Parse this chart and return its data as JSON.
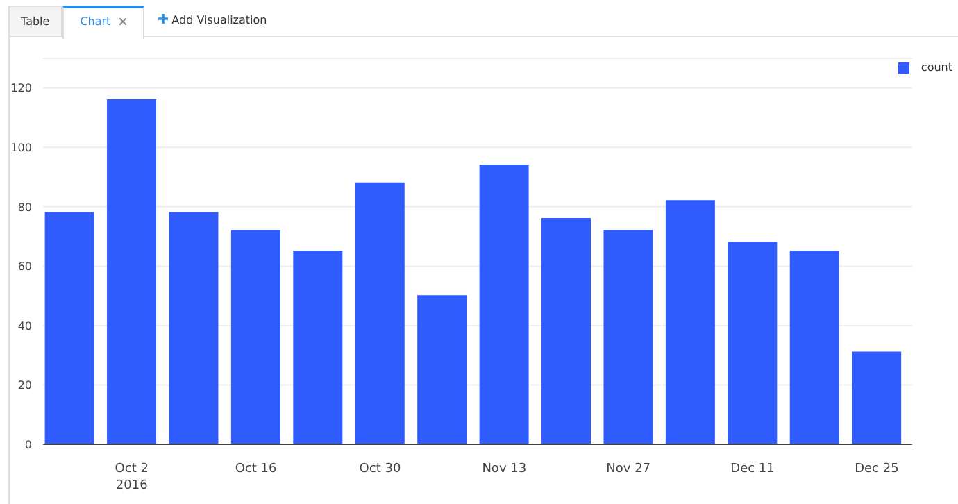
{
  "chart_data": {
    "type": "bar",
    "annotations": [
      "Table",
      "Chart",
      "Add Visualization"
    ],
    "x": [
      "2016-09-25",
      "2016-10-02",
      "2016-10-09",
      "2016-10-16",
      "2016-10-23",
      "2016-10-30",
      "2016-11-06",
      "2016-11-13",
      "2016-11-20",
      "2016-11-27",
      "2016-12-04",
      "2016-12-11",
      "2016-12-18",
      "2016-12-25"
    ],
    "series": [
      {
        "name": "count",
        "color": "#2f5bff",
        "values": [
          78,
          116,
          78,
          72,
          65,
          88,
          50,
          94,
          76,
          72,
          82,
          68,
          65,
          31
        ]
      }
    ],
    "xlim": [
      "2016-09-22",
      "2016-12-29"
    ],
    "xticks": [
      {
        "value": "2016-10-02",
        "label": "Oct 2\n2016"
      },
      {
        "value": "2016-10-16",
        "label": "Oct 16"
      },
      {
        "value": "2016-10-30",
        "label": "Oct 30"
      },
      {
        "value": "2016-11-13",
        "label": "Nov 13"
      },
      {
        "value": "2016-11-27",
        "label": "Nov 27"
      },
      {
        "value": "2016-12-11",
        "label": "Dec 11"
      },
      {
        "value": "2016-12-25",
        "label": "Dec 25"
      }
    ],
    "ylim": [
      0,
      130
    ],
    "yticks": [
      0,
      20,
      40,
      60,
      80,
      100,
      120
    ],
    "grid": "y",
    "legend": "top right"
  }
}
